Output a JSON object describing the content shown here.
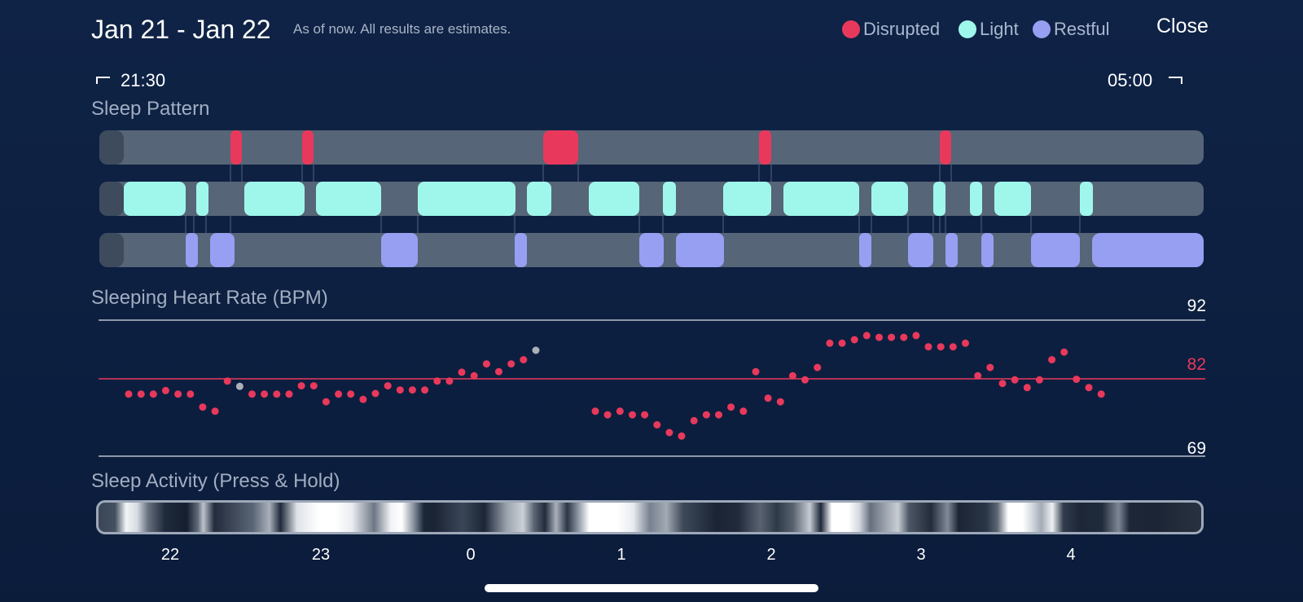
{
  "header": {
    "title": "Jan 21 - Jan 22",
    "subtitle": "As of now. All results are estimates.",
    "close_label": "Close"
  },
  "legend": [
    {
      "label": "Disrupted",
      "color": "#e8395c"
    },
    {
      "label": "Light",
      "color": "#9ff7ec"
    },
    {
      "label": "Restful",
      "color": "#979ff2"
    }
  ],
  "time_range": {
    "start": "21:30",
    "end": "05:00"
  },
  "sections": {
    "sleep_pattern": "Sleep Pattern",
    "heart_rate": "Sleeping Heart Rate (BPM)",
    "activity": "Sleep Activity (Press & Hold)"
  },
  "heart_rate": {
    "max": "92",
    "avg": "82",
    "min": "69",
    "avg_color": "#e8395c"
  },
  "x_ticks": [
    "22",
    "23",
    "0",
    "1",
    "2",
    "3",
    "4"
  ],
  "chart_data": {
    "type": "scatter",
    "y": [
      79.5,
      79.5,
      79.5,
      80.1,
      79.5,
      79.5,
      77.3,
      76.6,
      81.7,
      80.8,
      79.5,
      79.5,
      79.5,
      79.5,
      80.9,
      80.9,
      78.2,
      79.5,
      79.5,
      78.6,
      79.6,
      80.9,
      80.2,
      80.2,
      80.2,
      81.7,
      81.7,
      83.2,
      82.6,
      84.6,
      83.3,
      84.6,
      85.3,
      86.9,
      76.6,
      76.0,
      76.6,
      76.0,
      76.0,
      74.3,
      73.0,
      72.4,
      75.0,
      76.0,
      76.0,
      77.3,
      76.6,
      83.3,
      78.8,
      78.2,
      82.6,
      81.9,
      84.0,
      88.1,
      88.1,
      88.7,
      89.4,
      89.1,
      89.1,
      89.1,
      89.4,
      87.5,
      87.5,
      87.5,
      88.1,
      82.6,
      84.0,
      81.3,
      81.9,
      80.6,
      81.9,
      85.3,
      86.6,
      82.0,
      80.6,
      79.5
    ]
  }
}
